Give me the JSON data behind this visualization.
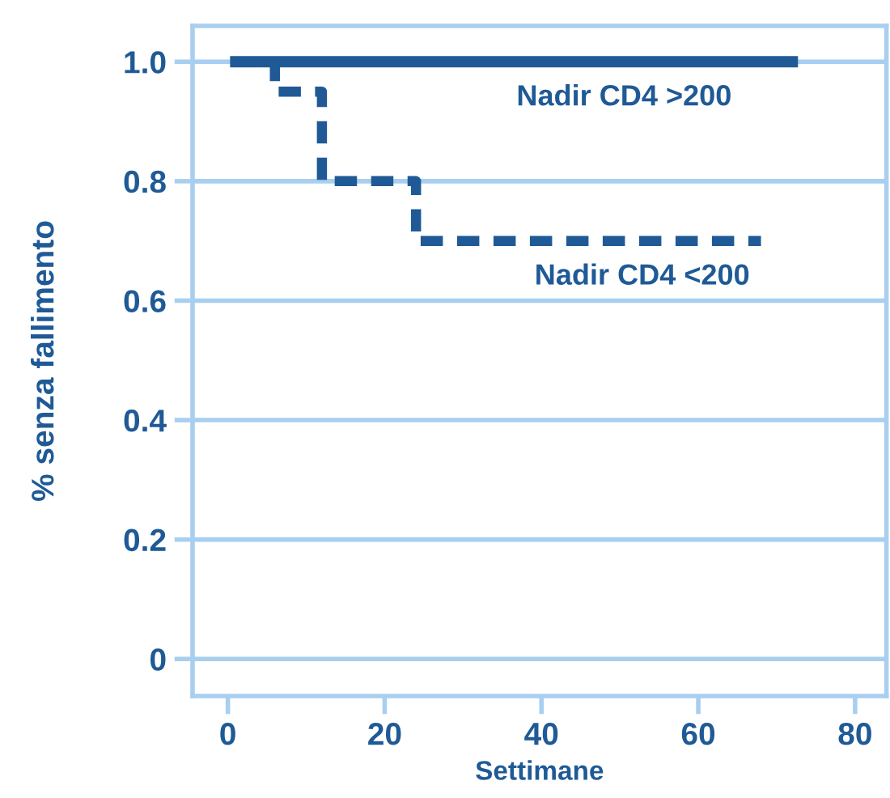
{
  "chart_data": {
    "type": "step",
    "xlabel": "Settimane",
    "ylabel": "% senza fallimento",
    "xlim": [
      -4.5,
      84
    ],
    "ylim": [
      -0.062,
      1.06
    ],
    "xticks": [
      0,
      20,
      40,
      60,
      80
    ],
    "yticks": [
      {
        "value": 0,
        "label": "0"
      },
      {
        "value": 0.2,
        "label": "0.2"
      },
      {
        "value": 0.4,
        "label": "0.4"
      },
      {
        "value": 0.6,
        "label": "0.6"
      },
      {
        "value": 0.8,
        "label": "0.8"
      },
      {
        "value": 1.0,
        "label": "1.0"
      }
    ],
    "grid": "y",
    "legend": false,
    "series": [
      {
        "name": "Nadir CD4 >200",
        "color": "#1f5a96",
        "line_style": "solid",
        "x": [
          1,
          72
        ],
        "values": [
          1.0,
          1.0
        ]
      },
      {
        "name": "Nadir CD4 <200",
        "color": "#1f5a96",
        "line_style": "dashed",
        "x": [
          1,
          6,
          12,
          24,
          68
        ],
        "values": [
          1.0,
          0.95,
          0.8,
          0.7,
          0.7
        ]
      }
    ]
  }
}
